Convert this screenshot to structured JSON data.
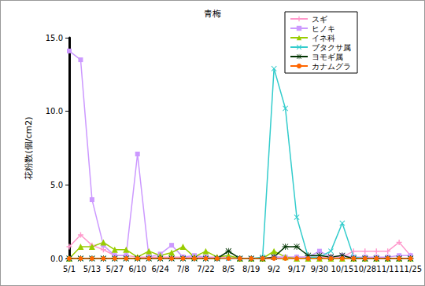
{
  "chart_data": {
    "type": "line",
    "title": "青梅",
    "y_label": "花粉数(個/cm2)",
    "categories": [
      "5/1",
      null,
      "5/13",
      null,
      "5/27",
      null,
      "6/10",
      null,
      "6/24",
      null,
      "7/8",
      null,
      "7/22",
      null,
      "8/5",
      null,
      "8/19",
      null,
      "9/2",
      null,
      "9/17",
      null,
      "9/30",
      null,
      "10/15",
      null,
      "10/28",
      null,
      "11/11",
      null,
      "11/25"
    ],
    "series": [
      {
        "name": "スギ",
        "color": "#ff99cc",
        "marker": "plus",
        "values": [
          0.8,
          1.6,
          0.9,
          0.6,
          0.2,
          0.2,
          0.1,
          0.1,
          0.1,
          0.1,
          0.1,
          0.1,
          0.1,
          0.1,
          0.1,
          0,
          0,
          0,
          0.1,
          0.1,
          0.1,
          0.1,
          0.1,
          0.1,
          0.1,
          0.5,
          0.5,
          0.5,
          0.5,
          1.1,
          0.2
        ]
      },
      {
        "name": "ヒノキ",
        "color": "#cc99ff",
        "marker": "square",
        "values": [
          14.1,
          13.5,
          4.0,
          0.9,
          0.2,
          0.2,
          7.1,
          0.1,
          0.3,
          0.9,
          0.1,
          0.2,
          0.1,
          0,
          0,
          0,
          0,
          0,
          0.1,
          0.1,
          0.1,
          0.1,
          0.5,
          0.1,
          0.2,
          0.1,
          0.1,
          0.1,
          0.1,
          0.2,
          0.2
        ]
      },
      {
        "name": "イネ科",
        "color": "#99cc00",
        "marker": "triangle",
        "values": [
          0,
          0.8,
          0.8,
          1.1,
          0.6,
          0.6,
          0.1,
          0.5,
          0.2,
          0.4,
          0.8,
          0.1,
          0.5,
          0.1,
          0.2,
          0,
          0,
          0,
          0.5,
          0.1,
          0,
          0,
          0,
          0,
          0,
          0,
          0,
          0,
          0,
          0,
          0
        ]
      },
      {
        "name": "ブタクサ属",
        "color": "#33cccc",
        "marker": "x",
        "values": [
          0,
          0,
          0,
          0,
          0,
          0,
          0,
          0,
          0,
          0,
          0,
          0,
          0,
          0,
          0,
          0,
          0,
          0.1,
          12.9,
          10.2,
          2.8,
          0.1,
          0.1,
          0.5,
          2.4,
          0.1,
          0,
          0,
          0,
          0,
          0
        ]
      },
      {
        "name": "ヨモギ属",
        "color": "#003300",
        "marker": "star",
        "values": [
          0,
          0,
          0,
          0,
          0,
          0,
          0,
          0,
          0,
          0,
          0,
          0,
          0,
          0,
          0.5,
          0,
          0,
          0,
          0.1,
          0.8,
          0.8,
          0.2,
          0.2,
          0.1,
          0.2,
          0,
          0,
          0,
          0,
          0,
          0
        ]
      },
      {
        "name": "カナムグラ",
        "color": "#ff6600",
        "marker": "circle",
        "values": [
          0,
          0,
          0,
          0,
          0,
          0,
          0,
          0,
          0,
          0,
          0,
          0,
          0,
          0,
          0,
          0,
          0,
          0,
          0,
          0,
          0,
          0,
          0,
          0,
          0,
          0,
          0,
          0,
          0,
          0,
          0
        ]
      }
    ],
    "ylim": [
      0,
      15
    ],
    "yticks": [
      {
        "value": 0,
        "label": "0.0"
      },
      {
        "value": 5,
        "label": "5.0"
      },
      {
        "value": 10,
        "label": "10.0"
      },
      {
        "value": 15,
        "label": "15.0"
      }
    ],
    "grid": false,
    "legend": "upper right"
  }
}
